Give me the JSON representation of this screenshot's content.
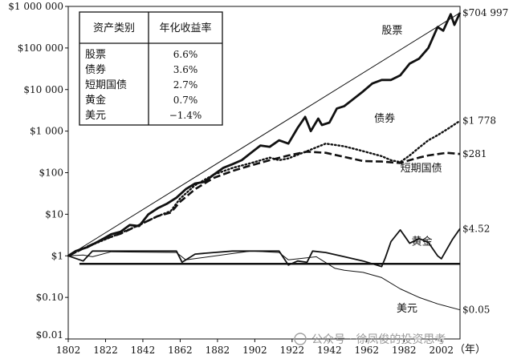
{
  "chart_data": {
    "type": "line",
    "yscale": "log",
    "ylim": [
      0.01,
      1000000
    ],
    "xlim": [
      1802,
      2012
    ],
    "y_ticks": [
      {
        "value": 1000000,
        "label": "$1 000 000"
      },
      {
        "value": 100000,
        "label": "$100 000"
      },
      {
        "value": 10000,
        "label": "$10 000"
      },
      {
        "value": 1000,
        "label": "$1 000"
      },
      {
        "value": 100,
        "label": "$100"
      },
      {
        "value": 10,
        "label": "$10"
      },
      {
        "value": 1,
        "label": "$1"
      },
      {
        "value": 0.1,
        "label": "$0.10"
      },
      {
        "value": 0.01,
        "label": "$0.01"
      }
    ],
    "x_ticks": [
      1802,
      1822,
      1842,
      1862,
      1882,
      1902,
      1922,
      1942,
      1962,
      1982,
      2002
    ],
    "x_unit": "（年）",
    "reference_level": 1,
    "table": {
      "headers": [
        "资产类别",
        "年化收益率"
      ],
      "rows": [
        [
          "股票",
          "6.6%"
        ],
        [
          "债券",
          "3.6%"
        ],
        [
          "短期国债",
          "2.7%"
        ],
        [
          "黄金",
          "0.7%"
        ],
        [
          "美元",
          "−1.4%"
        ]
      ]
    },
    "series": [
      {
        "name": "股票",
        "end_label": "$704 997",
        "style": "solid-thick",
        "x": [
          1802,
          1806,
          1812,
          1818,
          1825,
          1830,
          1835,
          1840,
          1845,
          1850,
          1855,
          1860,
          1865,
          1870,
          1875,
          1880,
          1885,
          1890,
          1895,
          1900,
          1905,
          1910,
          1915,
          1920,
          1925,
          1929,
          1932,
          1936,
          1938,
          1942,
          1946,
          1950,
          1955,
          1960,
          1965,
          1970,
          1975,
          1980,
          1985,
          1990,
          1995,
          2000,
          2003,
          2007,
          2009,
          2012
        ],
        "y": [
          1,
          1.3,
          1.6,
          2.2,
          3.3,
          3.8,
          5.5,
          5.2,
          10,
          14,
          18,
          25,
          40,
          55,
          60,
          90,
          130,
          160,
          200,
          300,
          450,
          420,
          600,
          500,
          1200,
          2200,
          1000,
          2000,
          1400,
          1600,
          3500,
          4000,
          6000,
          9000,
          14000,
          17000,
          17000,
          22000,
          42000,
          55000,
          100000,
          320000,
          260000,
          650000,
          360000,
          704997
        ]
      },
      {
        "name": "trend",
        "style": "solid-thin",
        "x": [
          1802,
          2012
        ],
        "y": [
          1,
          704997
        ]
      },
      {
        "name": "债券",
        "end_label": "$1 778",
        "style": "dotted",
        "x": [
          1802,
          1810,
          1820,
          1830,
          1840,
          1850,
          1857,
          1862,
          1870,
          1880,
          1890,
          1900,
          1910,
          1915,
          1920,
          1925,
          1930,
          1940,
          1950,
          1960,
          1970,
          1975,
          1980,
          1985,
          1990,
          1995,
          2000,
          2005,
          2012
        ],
        "y": [
          1,
          1.5,
          2.3,
          3.5,
          5.5,
          9,
          12,
          24,
          50,
          90,
          130,
          170,
          230,
          200,
          220,
          270,
          330,
          500,
          430,
          330,
          250,
          200,
          180,
          260,
          400,
          600,
          800,
          1100,
          1778
        ]
      },
      {
        "name": "短期国债",
        "end_label": "$281",
        "style": "dashed",
        "x": [
          1802,
          1810,
          1820,
          1830,
          1840,
          1850,
          1857,
          1862,
          1870,
          1880,
          1890,
          1900,
          1910,
          1920,
          1930,
          1940,
          1950,
          1960,
          1970,
          1980,
          1985,
          1990,
          1995,
          2000,
          2005,
          2012
        ],
        "y": [
          1,
          1.5,
          2.4,
          3.4,
          5.5,
          9,
          11,
          20,
          40,
          75,
          110,
          150,
          200,
          260,
          320,
          300,
          240,
          190,
          185,
          170,
          200,
          230,
          260,
          280,
          300,
          281
        ]
      },
      {
        "name": "黄金",
        "end_label": "$4.52",
        "style": "solid-medium",
        "x": [
          1802,
          1810,
          1815,
          1820,
          1835,
          1860,
          1863,
          1870,
          1880,
          1890,
          1900,
          1915,
          1920,
          1925,
          1930,
          1933,
          1940,
          1950,
          1960,
          1970,
          1972,
          1975,
          1980,
          1985,
          1990,
          1995,
          2000,
          2002,
          2008,
          2012
        ],
        "y": [
          1,
          0.75,
          1.3,
          1.3,
          1.3,
          1.3,
          0.7,
          1.1,
          1.2,
          1.3,
          1.3,
          1.3,
          0.6,
          0.75,
          0.7,
          1.3,
          1.2,
          0.95,
          0.75,
          0.55,
          0.9,
          2.2,
          4.2,
          2.0,
          2.6,
          2.1,
          1.0,
          0.85,
          2.5,
          4.52
        ]
      },
      {
        "name": "美元",
        "end_label": "$0.05",
        "style": "solid-thin",
        "x": [
          1802,
          1810,
          1815,
          1825,
          1860,
          1865,
          1900,
          1915,
          1920,
          1935,
          1945,
          1950,
          1960,
          1970,
          1980,
          1990,
          2000,
          2012
        ],
        "y": [
          1,
          1.05,
          0.95,
          1.25,
          1.2,
          0.8,
          1.3,
          1.2,
          0.8,
          0.95,
          0.5,
          0.45,
          0.4,
          0.3,
          0.16,
          0.1,
          0.07,
          0.05
        ]
      }
    ]
  },
  "watermark": "公众号 · 徐凤俊的投资思考"
}
